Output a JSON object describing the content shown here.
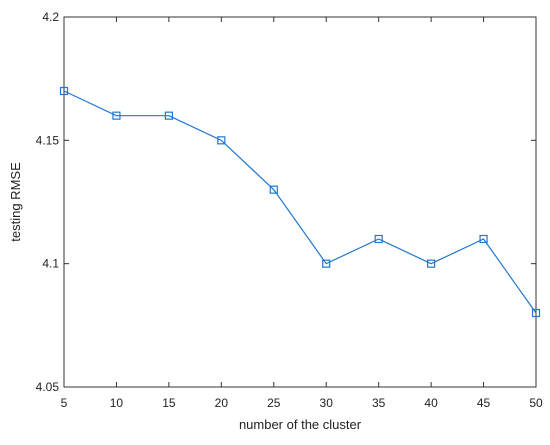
{
  "chart_data": {
    "type": "line",
    "title": "",
    "xlabel": "number of  the cluster",
    "ylabel": "testing RMSE",
    "x": [
      5,
      10,
      15,
      20,
      25,
      30,
      35,
      40,
      45,
      50
    ],
    "series": [
      {
        "values": [
          4.17,
          4.16,
          4.16,
          4.15,
          4.13,
          4.1,
          4.11,
          4.1,
          4.11,
          4.08
        ],
        "color": "#1f77d0",
        "marker": "square"
      }
    ],
    "xlim": [
      5,
      50
    ],
    "ylim": [
      4.05,
      4.2
    ],
    "xticks": [
      5,
      10,
      15,
      20,
      25,
      30,
      35,
      40,
      45,
      50
    ],
    "yticks": [
      4.05,
      4.1,
      4.15,
      4.2
    ],
    "ytick_labels": [
      "4.05",
      "4.1",
      "4.15",
      "4.2"
    ],
    "grid": false,
    "legend": "none",
    "box": true
  }
}
